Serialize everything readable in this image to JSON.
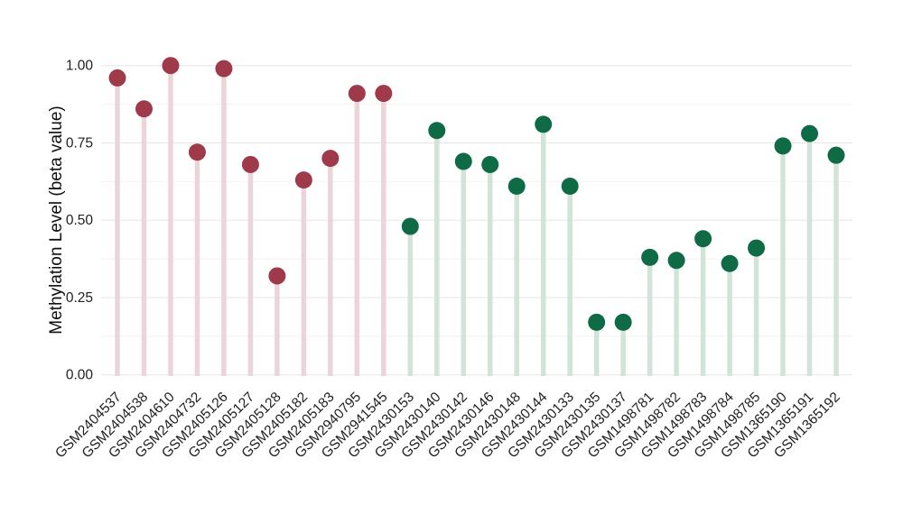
{
  "figure": {
    "background_color": "#ffffff"
  },
  "chart_data": {
    "type": "scatter",
    "variant": "lollipop",
    "title": "",
    "xlabel": "",
    "ylabel": "Methylation Level (beta value)",
    "ylim": [
      0,
      1
    ],
    "yticks": [
      0,
      0.25,
      0.5,
      0.75,
      1.0
    ],
    "ytick_labels": [
      "0.00",
      "0.25",
      "0.50",
      "0.75",
      "1.00"
    ],
    "grid": "horizontal major at 0.25 steps, minor at 0.125 steps",
    "legend": "none",
    "x_label_rotation_deg": 45,
    "categories": [
      "GSM2404537",
      "GSM2404538",
      "GSM2404610",
      "GSM2404732",
      "GSM2405126",
      "GSM2405127",
      "GSM2405128",
      "GSM2405182",
      "GSM2405183",
      "GSM2940795",
      "GSM2941545",
      "GSM2430153",
      "GSM2430140",
      "GSM2430142",
      "GSM2430146",
      "GSM2430148",
      "GSM2430144",
      "GSM2430133",
      "GSM2430135",
      "GSM2430137",
      "GSM1498781",
      "GSM1498782",
      "GSM1498783",
      "GSM1498784",
      "GSM1498785",
      "GSM1365190",
      "GSM1365191",
      "GSM1365192"
    ],
    "values": [
      0.96,
      0.86,
      1.0,
      0.72,
      0.99,
      0.68,
      0.32,
      0.63,
      0.7,
      0.91,
      0.91,
      0.48,
      0.79,
      0.69,
      0.68,
      0.61,
      0.81,
      0.61,
      0.17,
      0.17,
      0.38,
      0.37,
      0.44,
      0.36,
      0.41,
      0.74,
      0.78,
      0.71
    ],
    "groups": [
      "maroon",
      "maroon",
      "maroon",
      "maroon",
      "maroon",
      "maroon",
      "maroon",
      "maroon",
      "maroon",
      "maroon",
      "maroon",
      "green",
      "green",
      "green",
      "green",
      "green",
      "green",
      "green",
      "green",
      "green",
      "green",
      "green",
      "green",
      "green",
      "green",
      "green",
      "green",
      "green"
    ],
    "group_styles": {
      "maroon": {
        "dot": "#9e3a4a",
        "stem": "#ecd5da"
      },
      "green": {
        "dot": "#0e6b45",
        "stem": "#d2e3da"
      }
    }
  }
}
